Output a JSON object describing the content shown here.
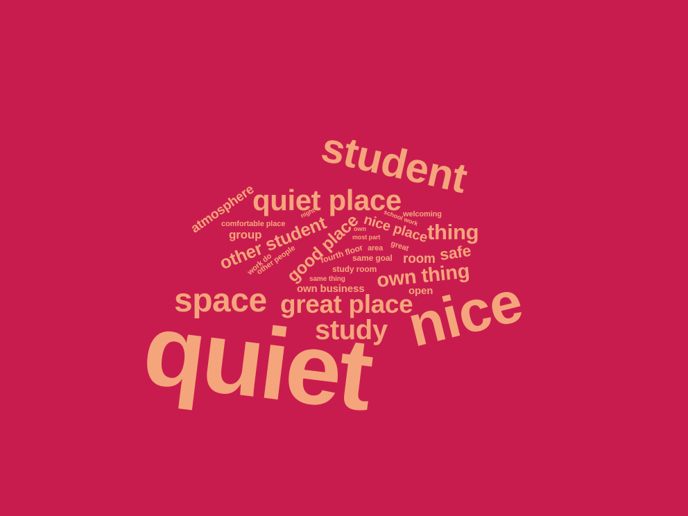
{
  "colors": {
    "background": "#C91C4E",
    "word": "#F5A57C"
  },
  "words": [
    {
      "text": "quiet",
      "weight": 100
    },
    {
      "text": "nice",
      "weight": 66
    },
    {
      "text": "student",
      "weight": 50
    },
    {
      "text": "space",
      "weight": 40
    },
    {
      "text": "quiet place",
      "weight": 36
    },
    {
      "text": "great place",
      "weight": 30
    },
    {
      "text": "study",
      "weight": 33
    },
    {
      "text": "thing",
      "weight": 28
    },
    {
      "text": "own thing",
      "weight": 25
    },
    {
      "text": "other student",
      "weight": 22
    },
    {
      "text": "good place",
      "weight": 22
    },
    {
      "text": "safe",
      "weight": 20
    },
    {
      "text": "nice place",
      "weight": 18
    },
    {
      "text": "atmosphere",
      "weight": 16
    },
    {
      "text": "room",
      "weight": 16
    },
    {
      "text": "group",
      "weight": 14
    },
    {
      "text": "own business",
      "weight": 14
    },
    {
      "text": "open",
      "weight": 12
    },
    {
      "text": "fourth floor",
      "weight": 11
    },
    {
      "text": "same goal",
      "weight": 11
    },
    {
      "text": "study room",
      "weight": 11
    },
    {
      "text": "other people",
      "weight": 10
    },
    {
      "text": "work do",
      "weight": 10
    },
    {
      "text": "comfortable place",
      "weight": 10
    },
    {
      "text": "same thing",
      "weight": 9
    },
    {
      "text": "welcoming",
      "weight": 9
    },
    {
      "text": "area",
      "weight": 9
    },
    {
      "text": "great",
      "weight": 9
    },
    {
      "text": "school work",
      "weight": 8
    },
    {
      "text": "most part",
      "weight": 8
    },
    {
      "text": "night",
      "weight": 8
    },
    {
      "text": "own",
      "weight": 7
    }
  ]
}
